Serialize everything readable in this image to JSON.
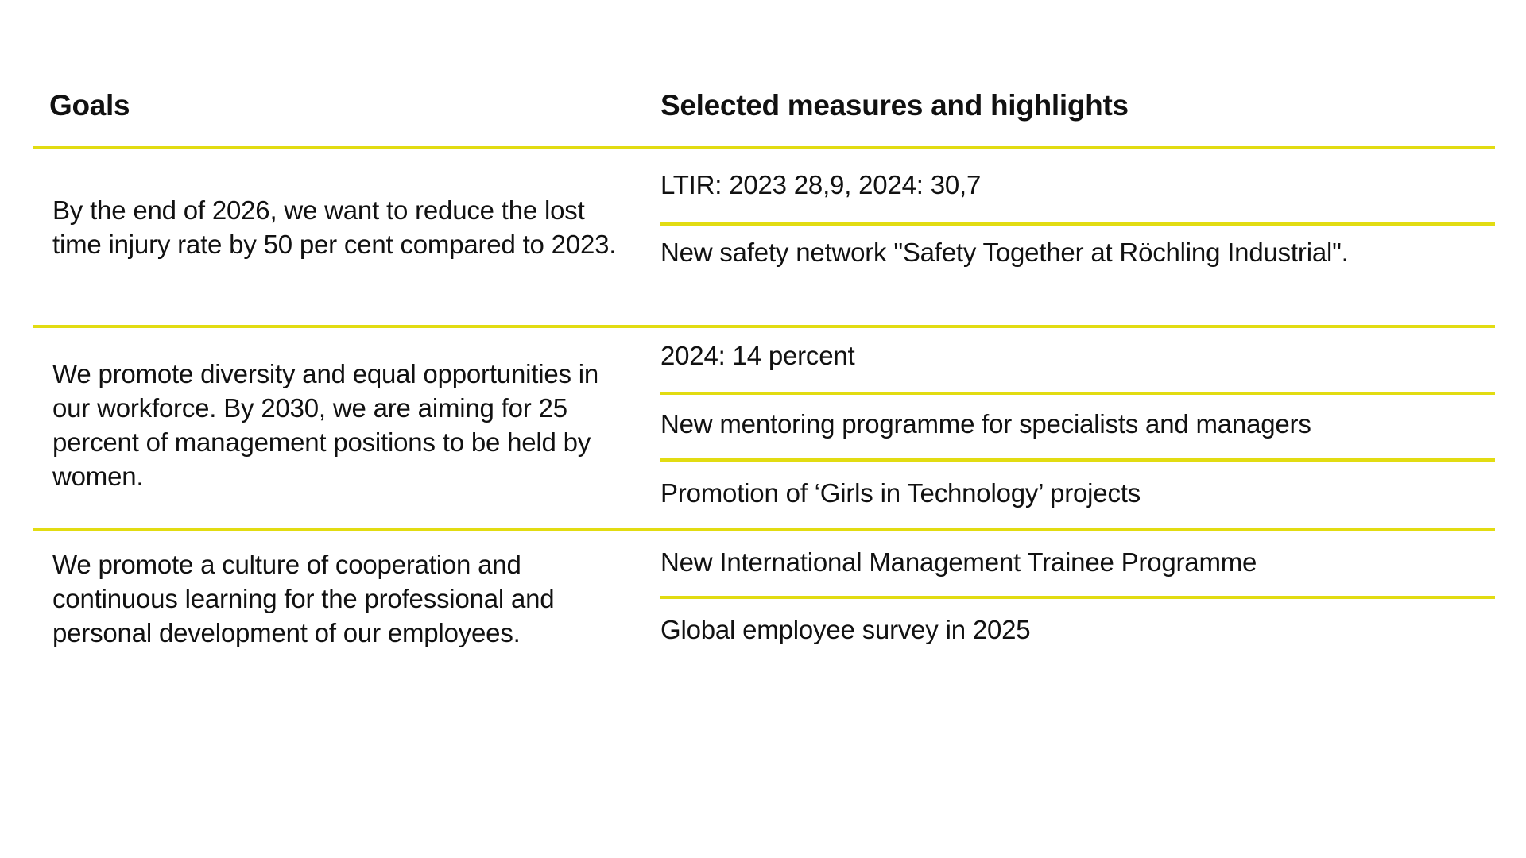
{
  "header": {
    "goals": "Goals",
    "measures": "Selected measures and highlights"
  },
  "rows": [
    {
      "goal": "By the end of 2026, we want to reduce the lost time injury rate by 50 per cent compared to 2023.",
      "measures": [
        "LTIR: 2023 28,9, 2024: 30,7",
        "New safety network \"Safety Together at Röchling Industrial\"."
      ]
    },
    {
      "goal": "We promote diversity and equal opportunities in our workforce. By 2030, we are aiming for 25 percent of management positions to be held by women.",
      "measures": [
        "2024: 14 percent",
        "New mentoring programme for specialists and managers",
        "Promotion of ‘Girls in Technology’ projects"
      ]
    },
    {
      "goal": "We promote a culture of cooperation and continuous learning for the professional and personal development of our employees.",
      "measures": [
        "New International Management Trainee Programme",
        "Global employee survey in 2025"
      ]
    }
  ],
  "colors": {
    "accent": "#e2dc12"
  }
}
